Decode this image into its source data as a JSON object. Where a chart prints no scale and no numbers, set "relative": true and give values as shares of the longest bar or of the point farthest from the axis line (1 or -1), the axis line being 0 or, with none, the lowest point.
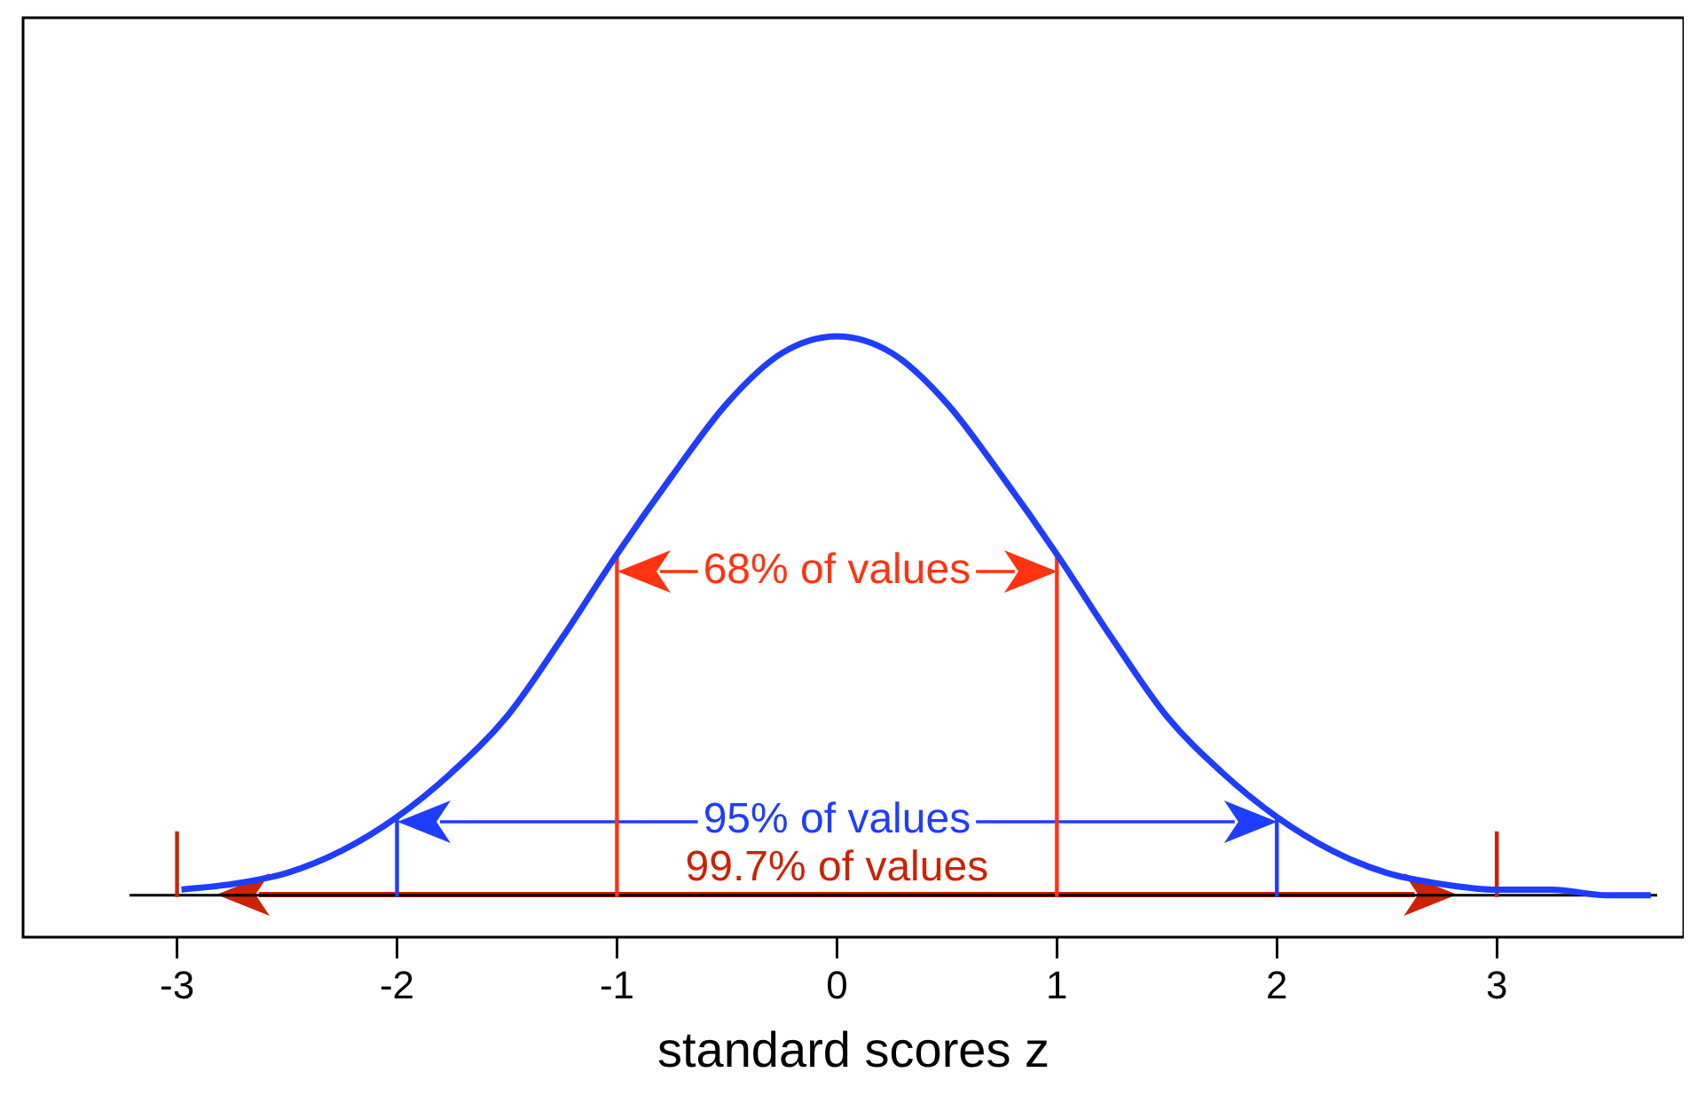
{
  "chart_data": {
    "type": "line",
    "relative": true,
    "xlabel": "standard scores z",
    "xlim": [
      -3.7,
      3.85
    ],
    "xticks": [
      -3,
      -2,
      -1,
      0,
      1,
      2,
      3
    ],
    "grid": false,
    "legend": false,
    "marker": "none",
    "line_style": "solid",
    "series": [
      {
        "color": "#1f3dff",
        "x": [
          -2.98,
          -2.75,
          -2.5,
          -2.25,
          -2,
          -1.75,
          -1.5,
          -1.25,
          -1,
          -0.75,
          -0.5,
          -0.25,
          0,
          0.25,
          0.5,
          0.75,
          1,
          1.25,
          1.5,
          1.75,
          2,
          2.25,
          2.5,
          2.75,
          3,
          3.25,
          3.5,
          3.7
        ],
        "values": [
          0.01,
          0.02,
          0.04,
          0.08,
          0.14,
          0.22,
          0.32,
          0.46,
          0.61,
          0.75,
          0.88,
          0.97,
          1,
          0.97,
          0.88,
          0.75,
          0.61,
          0.46,
          0.32,
          0.22,
          0.14,
          0.08,
          0.04,
          0.02,
          0.01,
          0.01,
          0,
          0
        ]
      }
    ],
    "ref_lines": [
      {
        "axis": "x",
        "value": -1,
        "color": "#ff3311"
      },
      {
        "axis": "x",
        "value": 1,
        "color": "#ff3311"
      },
      {
        "axis": "x",
        "value": -2,
        "color": "#1f3dff"
      },
      {
        "axis": "x",
        "value": 2,
        "color": "#1f3dff"
      },
      {
        "axis": "x",
        "value": -3,
        "color": "#cc2200"
      },
      {
        "axis": "x",
        "value": 3,
        "color": "#cc2200"
      }
    ],
    "annotations": [
      "68% of values",
      "95% of values",
      "99.7% of values"
    ]
  }
}
